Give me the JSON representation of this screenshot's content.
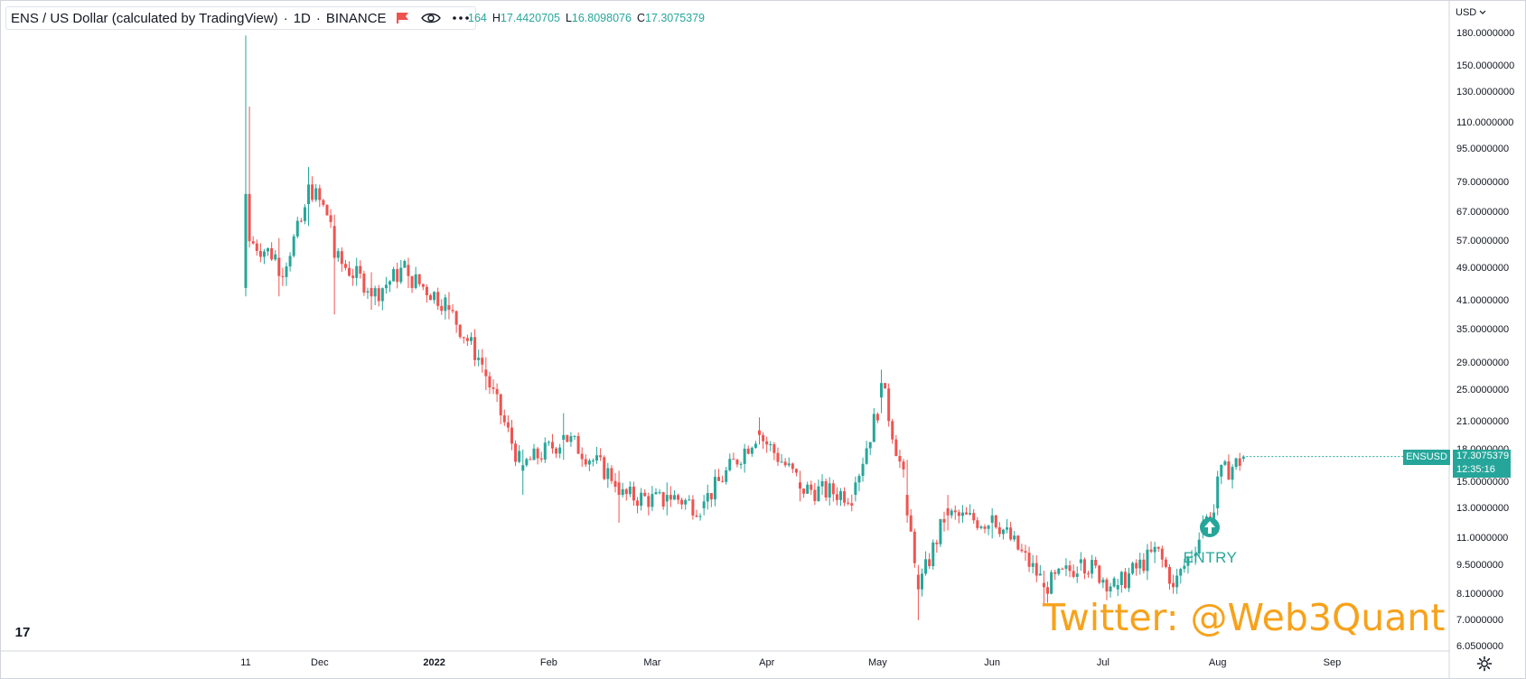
{
  "header": {
    "symbol": "ENS / US Dollar (calculated by TradingView)",
    "interval": "1D",
    "exchange": "BINANCE",
    "ohlc_partial": "164",
    "high_label": "H",
    "high": "17.4420705",
    "low_label": "L",
    "low": "16.8098076",
    "close_label": "C",
    "close": "17.3075379"
  },
  "currency": "USD",
  "last_price": {
    "symbol": "ENSUSD",
    "price": "17.3075379",
    "countdown": "12:35:16"
  },
  "entry_marker": {
    "label": "ENTRY"
  },
  "watermark": "Twitter: @Web3Quant",
  "logo_text": "17",
  "colors": {
    "up": "#26a69a",
    "down": "#ef5350",
    "watermark": "#f7a21b",
    "axis": "#d1d4dc"
  },
  "icons": [
    "flag-icon",
    "eye-icon",
    "more-dots-icon",
    "entry-arrow-up-icon",
    "tradingview-logo-icon",
    "gear-icon",
    "chevron-down-icon"
  ],
  "chart_data": {
    "type": "candlestick",
    "scale": "log",
    "y_axis_ticks": [
      "180.0000000",
      "150.0000000",
      "130.0000000",
      "110.0000000",
      "95.0000000",
      "79.0000000",
      "67.0000000",
      "57.0000000",
      "49.0000000",
      "41.0000000",
      "35.0000000",
      "29.0000000",
      "25.0000000",
      "21.0000000",
      "18.0000000",
      "15.0000000",
      "13.0000000",
      "11.0000000",
      "9.5000000",
      "8.1000000",
      "7.0000000",
      "6.0500000"
    ],
    "x_axis_ticks": [
      "11",
      "Dec",
      "2022",
      "Feb",
      "Mar",
      "Apr",
      "May",
      "Jun",
      "Jul",
      "Aug",
      "Sep"
    ],
    "series": [
      {
        "name": "ENSUSD",
        "ohlc_anchors": [
          [
            "2021-11-11",
            44.0,
            178.0,
            42.0,
            74.0
          ],
          [
            "2021-11-12",
            74.0,
            120.0,
            55.0,
            57.0
          ],
          [
            "2021-11-20",
            52.0,
            58.0,
            42.0,
            47.0
          ],
          [
            "2021-11-28",
            70.0,
            86.0,
            62.0,
            78.0
          ],
          [
            "2021-12-05",
            62.0,
            66.0,
            38.0,
            52.0
          ],
          [
            "2021-12-15",
            44.0,
            48.0,
            39.0,
            42.0
          ],
          [
            "2021-12-25",
            50.0,
            52.0,
            44.0,
            47.0
          ],
          [
            "2022-01-05",
            40.0,
            43.0,
            37.0,
            39.0
          ],
          [
            "2022-01-15",
            28.0,
            30.0,
            25.0,
            27.0
          ],
          [
            "2022-01-25",
            16.0,
            18.0,
            14.0,
            16.5
          ],
          [
            "2022-02-05",
            19.0,
            22.0,
            17.0,
            19.5
          ],
          [
            "2022-02-20",
            15.0,
            16.0,
            12.0,
            14.0
          ],
          [
            "2022-03-05",
            13.5,
            15.0,
            12.5,
            14.0
          ],
          [
            "2022-03-15",
            13.0,
            14.0,
            12.5,
            13.5
          ],
          [
            "2022-03-30",
            20.0,
            21.5,
            18.5,
            19.5
          ],
          [
            "2022-04-10",
            15.0,
            16.0,
            13.5,
            14.5
          ],
          [
            "2022-04-25",
            14.0,
            15.5,
            13.5,
            15.0
          ],
          [
            "2022-05-02",
            24.0,
            28.0,
            22.0,
            26.0
          ],
          [
            "2022-05-09",
            14.0,
            17.0,
            12.0,
            12.5
          ],
          [
            "2022-05-12",
            9.0,
            9.5,
            7.0,
            8.3
          ],
          [
            "2022-05-20",
            13.0,
            14.0,
            11.5,
            12.5
          ],
          [
            "2022-06-01",
            12.0,
            13.0,
            11.0,
            12.5
          ],
          [
            "2022-06-15",
            8.6,
            9.2,
            7.6,
            8.4
          ],
          [
            "2022-06-25",
            9.6,
            10.2,
            9.2,
            9.8
          ],
          [
            "2022-07-05",
            8.3,
            8.8,
            8.0,
            8.5
          ],
          [
            "2022-07-15",
            10.2,
            10.8,
            9.6,
            10.5
          ],
          [
            "2022-07-20",
            8.6,
            9.0,
            8.1,
            8.4
          ],
          [
            "2022-07-28",
            11.5,
            12.5,
            11.0,
            12.0
          ],
          [
            "2022-08-01",
            13.0,
            16.0,
            12.5,
            15.5
          ],
          [
            "2022-08-08",
            17.1,
            17.44,
            16.81,
            17.31
          ]
        ]
      }
    ],
    "entry_date": "2022-07-30",
    "grid": false
  }
}
